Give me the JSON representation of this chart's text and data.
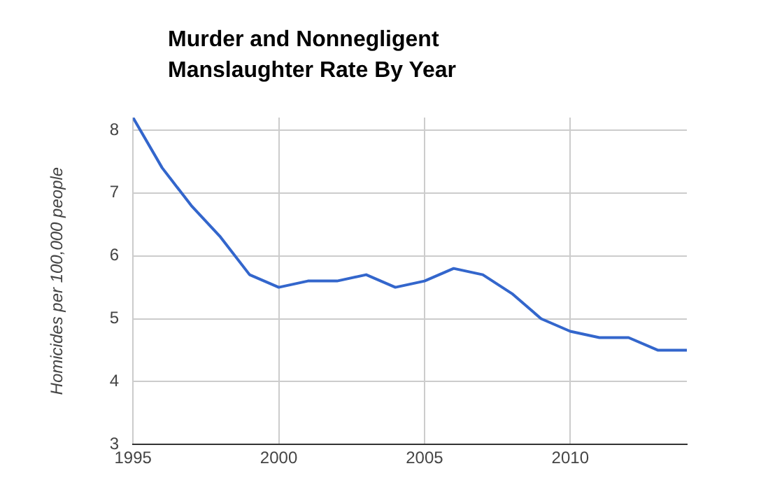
{
  "chart_data": {
    "type": "line",
    "title": "Murder and Nonnegligent Manslaughter Rate By Year",
    "ylabel": "Homicides per 100,000 people",
    "x": [
      1995,
      1996,
      1997,
      1998,
      1999,
      2000,
      2001,
      2002,
      2003,
      2004,
      2005,
      2006,
      2007,
      2008,
      2009,
      2010,
      2011,
      2012,
      2013,
      2014
    ],
    "series": [
      {
        "color": "#3366cc",
        "values": [
          8.2,
          7.4,
          6.8,
          6.3,
          5.7,
          5.5,
          5.6,
          5.6,
          5.7,
          5.5,
          5.6,
          5.8,
          5.7,
          5.4,
          5.0,
          4.8,
          4.7,
          4.7,
          4.5,
          4.5
        ]
      }
    ],
    "xlim": [
      1995,
      2014
    ],
    "xticks": [
      1995,
      2000,
      2005,
      2010
    ],
    "ylim": [
      3,
      8.2
    ],
    "yticks": [
      3,
      4,
      5,
      6,
      7,
      8
    ],
    "grid": true,
    "legend": false
  }
}
